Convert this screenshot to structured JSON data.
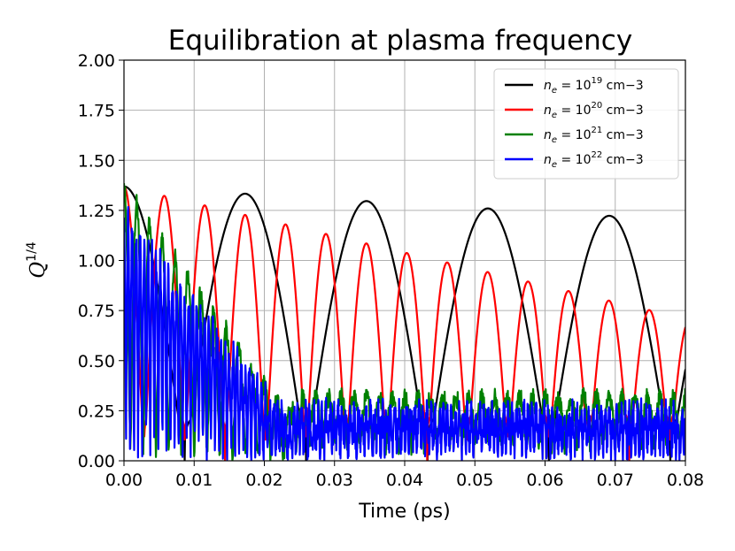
{
  "chart_data": {
    "type": "line",
    "title": "Equilibration at plasma frequency",
    "xlabel": "Time (ps)",
    "ylabel": "Q^{1/4}",
    "ylabel_main": "Q",
    "ylabel_sup": "1/4",
    "xlim": [
      0.0,
      0.08
    ],
    "ylim": [
      0.0,
      2.0
    ],
    "grid": true,
    "legend_position": "top-right",
    "x_ticks": [
      "0.00",
      "0.01",
      "0.02",
      "0.03",
      "0.04",
      "0.05",
      "0.06",
      "0.07",
      "0.08"
    ],
    "y_ticks": [
      "0.00",
      "0.25",
      "0.50",
      "0.75",
      "1.00",
      "1.25",
      "1.50",
      "1.75",
      "2.00"
    ],
    "series": [
      {
        "name": "n_e = 10^19 cm-3",
        "legend_var": "n",
        "legend_sub": "e",
        "legend_eq": " = 10",
        "legend_exp": "19",
        "legend_unit": " cm−3",
        "color": "#000000",
        "model": {
          "period_ps": 0.0173,
          "amp_start": 1.37,
          "amp_end": 1.2,
          "floor": 0.3,
          "noise": 0.0
        },
        "peaks": [
          [
            0.0,
            1.37
          ],
          [
            0.017,
            1.25
          ],
          [
            0.0345,
            1.25
          ],
          [
            0.0518,
            1.22
          ],
          [
            0.069,
            1.2
          ]
        ]
      },
      {
        "name": "n_e = 10^20 cm-3",
        "legend_var": "n",
        "legend_sub": "e",
        "legend_eq": " = 10",
        "legend_exp": "20",
        "legend_unit": " cm−3",
        "color": "#ff0000",
        "model": {
          "period_ps": 0.00576,
          "amp_start": 1.37,
          "amp_end": 0.71,
          "floor": 0.3,
          "noise": 0.0
        },
        "peaks": [
          [
            0.0055,
            1.27
          ],
          [
            0.011,
            1.26
          ],
          [
            0.0166,
            1.2
          ],
          [
            0.022,
            1.18
          ],
          [
            0.0277,
            1.13
          ]
        ]
      },
      {
        "name": "n_e = 10^21 cm-3",
        "legend_var": "n",
        "legend_sub": "e",
        "legend_eq": " = 10",
        "legend_exp": "21",
        "legend_unit": " cm−3",
        "color": "#008000",
        "model": {
          "period_ps": 0.00182,
          "amp_start": 1.37,
          "amp_end": 0.24,
          "floor": 0.15,
          "noise": 0.05
        },
        "peaks": [
          [
            0.002,
            1.25
          ],
          [
            0.004,
            1.15
          ],
          [
            0.006,
            1.05
          ],
          [
            0.008,
            0.95
          ]
        ]
      },
      {
        "name": "n_e = 10^22 cm-3",
        "legend_var": "n",
        "legend_sub": "e",
        "legend_eq": " = 10",
        "legend_exp": "22",
        "legend_unit": " cm−3",
        "color": "#0000ff",
        "model": {
          "period_ps": 0.000576,
          "amp_start": 1.22,
          "amp_end": 0.2,
          "floor": 0.05,
          "noise": 0.09
        },
        "peaks": [
          [
            0.0005,
            1.2
          ],
          [
            0.001,
            1.1
          ],
          [
            0.002,
            0.9
          ]
        ]
      }
    ]
  }
}
